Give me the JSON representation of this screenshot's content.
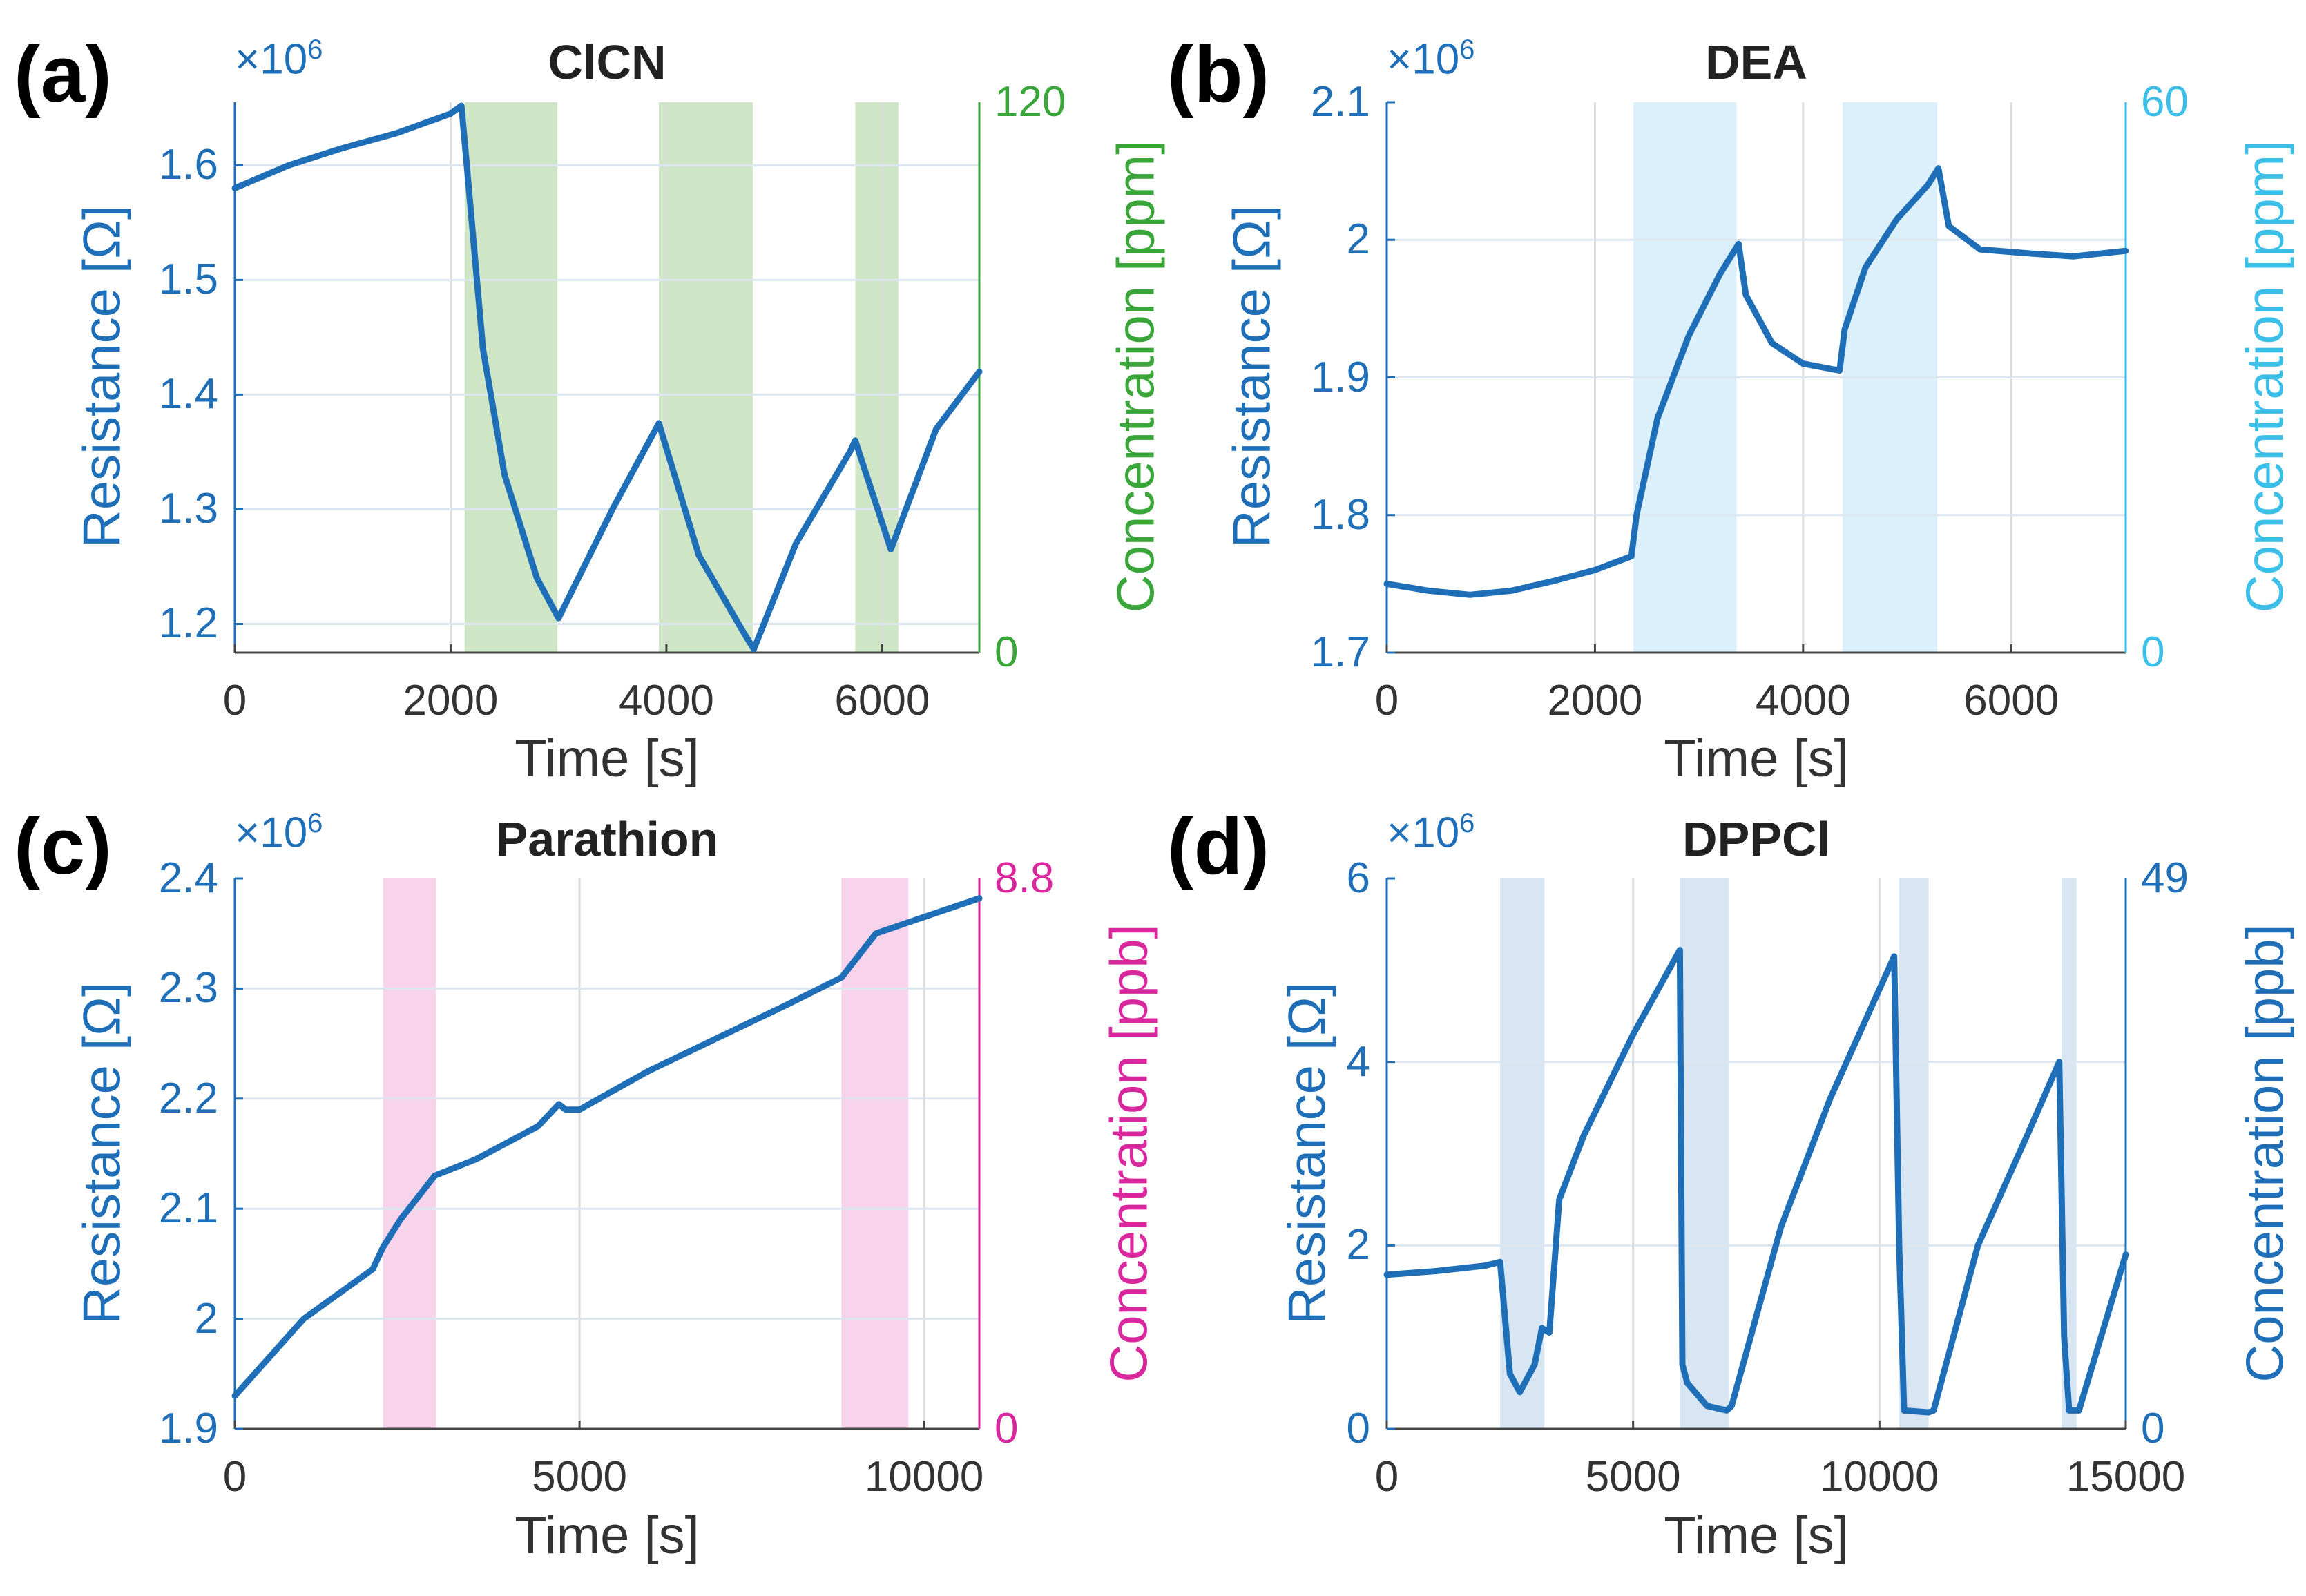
{
  "chart_data": [
    {
      "panel": "(a)",
      "type": "line",
      "title": "ClCN",
      "xlabel": "Time [s]",
      "ylabel": "Resistance [Ω]",
      "y2label": "Concentration [ppm]",
      "y_multiplier": "×10",
      "y_multiplier_exp": "6",
      "xlim": [
        0,
        6900
      ],
      "ylim": [
        1.175,
        1.655
      ],
      "y2lim": [
        0,
        120
      ],
      "xticks": [
        0,
        2000,
        4000,
        6000
      ],
      "yticks": [
        1.2,
        1.3,
        1.4,
        1.5,
        1.6
      ],
      "y2ticks": [
        0,
        120
      ],
      "line_color": "#1f6fb8",
      "y2_color": "#3aa63a",
      "shade_color": "#cfe6c6",
      "exposures": [
        [
          2130,
          2990
        ],
        [
          3930,
          4800
        ],
        [
          5750,
          6150
        ]
      ],
      "series": [
        {
          "name": "Resistance",
          "x": [
            0,
            500,
            1000,
            1500,
            2000,
            2100,
            2150,
            2300,
            2500,
            2800,
            3000,
            3500,
            3930,
            4300,
            4700,
            4810,
            5200,
            5700,
            5750,
            6080,
            6500,
            6900
          ],
          "y": [
            1.58,
            1.6,
            1.615,
            1.628,
            1.645,
            1.652,
            1.6,
            1.44,
            1.33,
            1.24,
            1.205,
            1.3,
            1.375,
            1.26,
            1.195,
            1.178,
            1.27,
            1.35,
            1.36,
            1.265,
            1.37,
            1.42
          ]
        }
      ]
    },
    {
      "panel": "(b)",
      "type": "line",
      "title": "DEA",
      "xlabel": "Time [s]",
      "ylabel": "Resistance [Ω]",
      "y2label": "Concentration [ppm]",
      "y_multiplier": "×10",
      "y_multiplier_exp": "6",
      "xlim": [
        0,
        7100
      ],
      "ylim": [
        1.7,
        2.1
      ],
      "y2lim": [
        0,
        60
      ],
      "xticks": [
        0,
        2000,
        4000,
        6000
      ],
      "yticks": [
        1.7,
        1.8,
        1.9,
        2,
        2.1
      ],
      "y2ticks": [
        0,
        60
      ],
      "line_color": "#1f6fb8",
      "y2_color": "#3bbfe8",
      "shade_color": "#dbf0fb",
      "exposures": [
        [
          2370,
          3360
        ],
        [
          4380,
          5290
        ]
      ],
      "series": [
        {
          "name": "Resistance",
          "x": [
            0,
            400,
            800,
            1200,
            1600,
            2000,
            2350,
            2400,
            2600,
            2900,
            3200,
            3380,
            3450,
            3700,
            4000,
            4350,
            4400,
            4600,
            4900,
            5200,
            5300,
            5400,
            5700,
            6200,
            6600,
            7100
          ],
          "y": [
            1.75,
            1.745,
            1.742,
            1.745,
            1.752,
            1.76,
            1.77,
            1.8,
            1.87,
            1.93,
            1.975,
            1.997,
            1.96,
            1.925,
            1.91,
            1.905,
            1.935,
            1.98,
            2.015,
            2.04,
            2.052,
            2.01,
            1.993,
            1.99,
            1.988,
            1.992
          ]
        }
      ]
    },
    {
      "panel": "(c)",
      "type": "line",
      "title": "Parathion",
      "xlabel": "Time [s]",
      "ylabel": "Resistance [Ω]",
      "y2label": "Concentration [ppb]",
      "y_multiplier": "×10",
      "y_multiplier_exp": "6",
      "xlim": [
        0,
        10800
      ],
      "ylim": [
        1.9,
        2.4
      ],
      "y2lim": [
        0,
        8.8
      ],
      "xticks": [
        0,
        5000,
        10000
      ],
      "yticks": [
        1.9,
        2,
        2.1,
        2.2,
        2.3,
        2.4
      ],
      "y2ticks": [
        0,
        8.8
      ],
      "line_color": "#1f6fb8",
      "y2_color": "#d9289e",
      "shade_color": "#f7d3ec",
      "exposures": [
        [
          2150,
          2920
        ],
        [
          8800,
          9770
        ]
      ],
      "series": [
        {
          "name": "Resistance",
          "x": [
            0,
            1000,
            2000,
            2150,
            2400,
            2900,
            3500,
            4400,
            4700,
            4800,
            5000,
            6000,
            7000,
            8000,
            8800,
            9300,
            10000,
            10800
          ],
          "y": [
            1.93,
            2.0,
            2.045,
            2.065,
            2.09,
            2.13,
            2.145,
            2.175,
            2.195,
            2.19,
            2.19,
            2.225,
            2.255,
            2.285,
            2.31,
            2.35,
            2.365,
            2.382
          ]
        }
      ]
    },
    {
      "panel": "(d)",
      "type": "line",
      "title": "DPPCl",
      "xlabel": "Time [s]",
      "ylabel": "Resistance [Ω]",
      "y2label": "Concentration [ppb]",
      "y_multiplier": "×10",
      "y_multiplier_exp": "6",
      "xlim": [
        0,
        15000
      ],
      "ylim": [
        0,
        6
      ],
      "y2lim": [
        0,
        49
      ],
      "xticks": [
        0,
        5000,
        10000,
        15000
      ],
      "yticks": [
        0,
        2,
        4,
        6
      ],
      "y2ticks": [
        0,
        49
      ],
      "line_color": "#1f6fb8",
      "y2_color": "#1f6fb8",
      "shade_color": "#d8e6f3",
      "exposures": [
        [
          2300,
          3200
        ],
        [
          5950,
          6950
        ],
        [
          10400,
          11000
        ],
        [
          13700,
          14000
        ]
      ],
      "series": [
        {
          "name": "Resistance",
          "x": [
            0,
            1000,
            2000,
            2300,
            2500,
            2700,
            3000,
            3150,
            3300,
            3500,
            4000,
            5000,
            5950,
            6000,
            6100,
            6500,
            6900,
            7000,
            8000,
            9000,
            10300,
            10400,
            10500,
            11000,
            11100,
            12000,
            13000,
            13650,
            13750,
            13850,
            14050,
            15000
          ],
          "y": [
            1.68,
            1.72,
            1.78,
            1.82,
            0.6,
            0.4,
            0.7,
            1.1,
            1.05,
            2.5,
            3.2,
            4.3,
            5.22,
            0.7,
            0.5,
            0.25,
            0.2,
            0.25,
            2.2,
            3.6,
            5.15,
            2.0,
            0.2,
            0.18,
            0.2,
            2.0,
            3.2,
            4.0,
            1.0,
            0.2,
            0.2,
            1.9
          ]
        }
      ]
    }
  ]
}
